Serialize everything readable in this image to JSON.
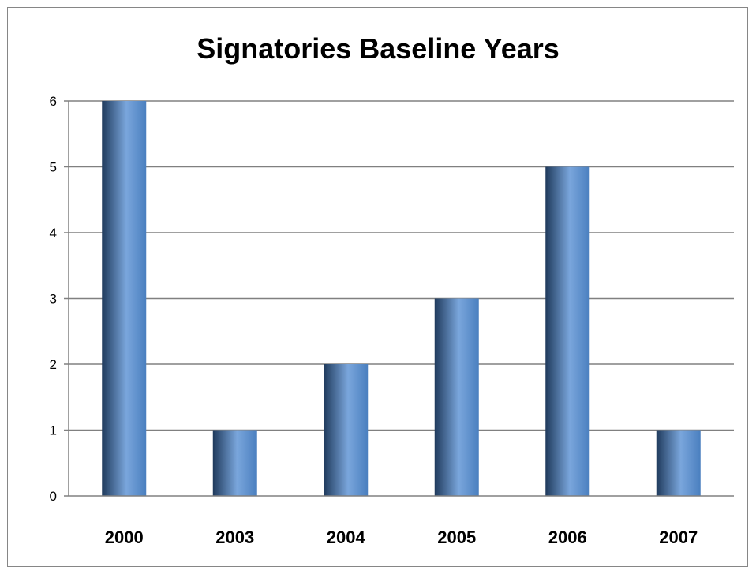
{
  "chart_data": {
    "type": "bar",
    "title": "Signatories Baseline Years",
    "categories": [
      "2000",
      "2003",
      "2004",
      "2005",
      "2006",
      "2007"
    ],
    "values": [
      6,
      1,
      2,
      3,
      5,
      1
    ],
    "xlabel": "",
    "ylabel": "",
    "ylim": [
      0,
      6
    ],
    "yticks": [
      "0",
      "1",
      "2",
      "3",
      "4",
      "5",
      "6"
    ],
    "grid": true,
    "legend": "none",
    "colors": {
      "bar_dark": "#1f3a5c",
      "bar_mid": "#4a7fbf",
      "bar_light": "#7aa6dc",
      "grid": "#808080",
      "axis": "#808080"
    }
  }
}
